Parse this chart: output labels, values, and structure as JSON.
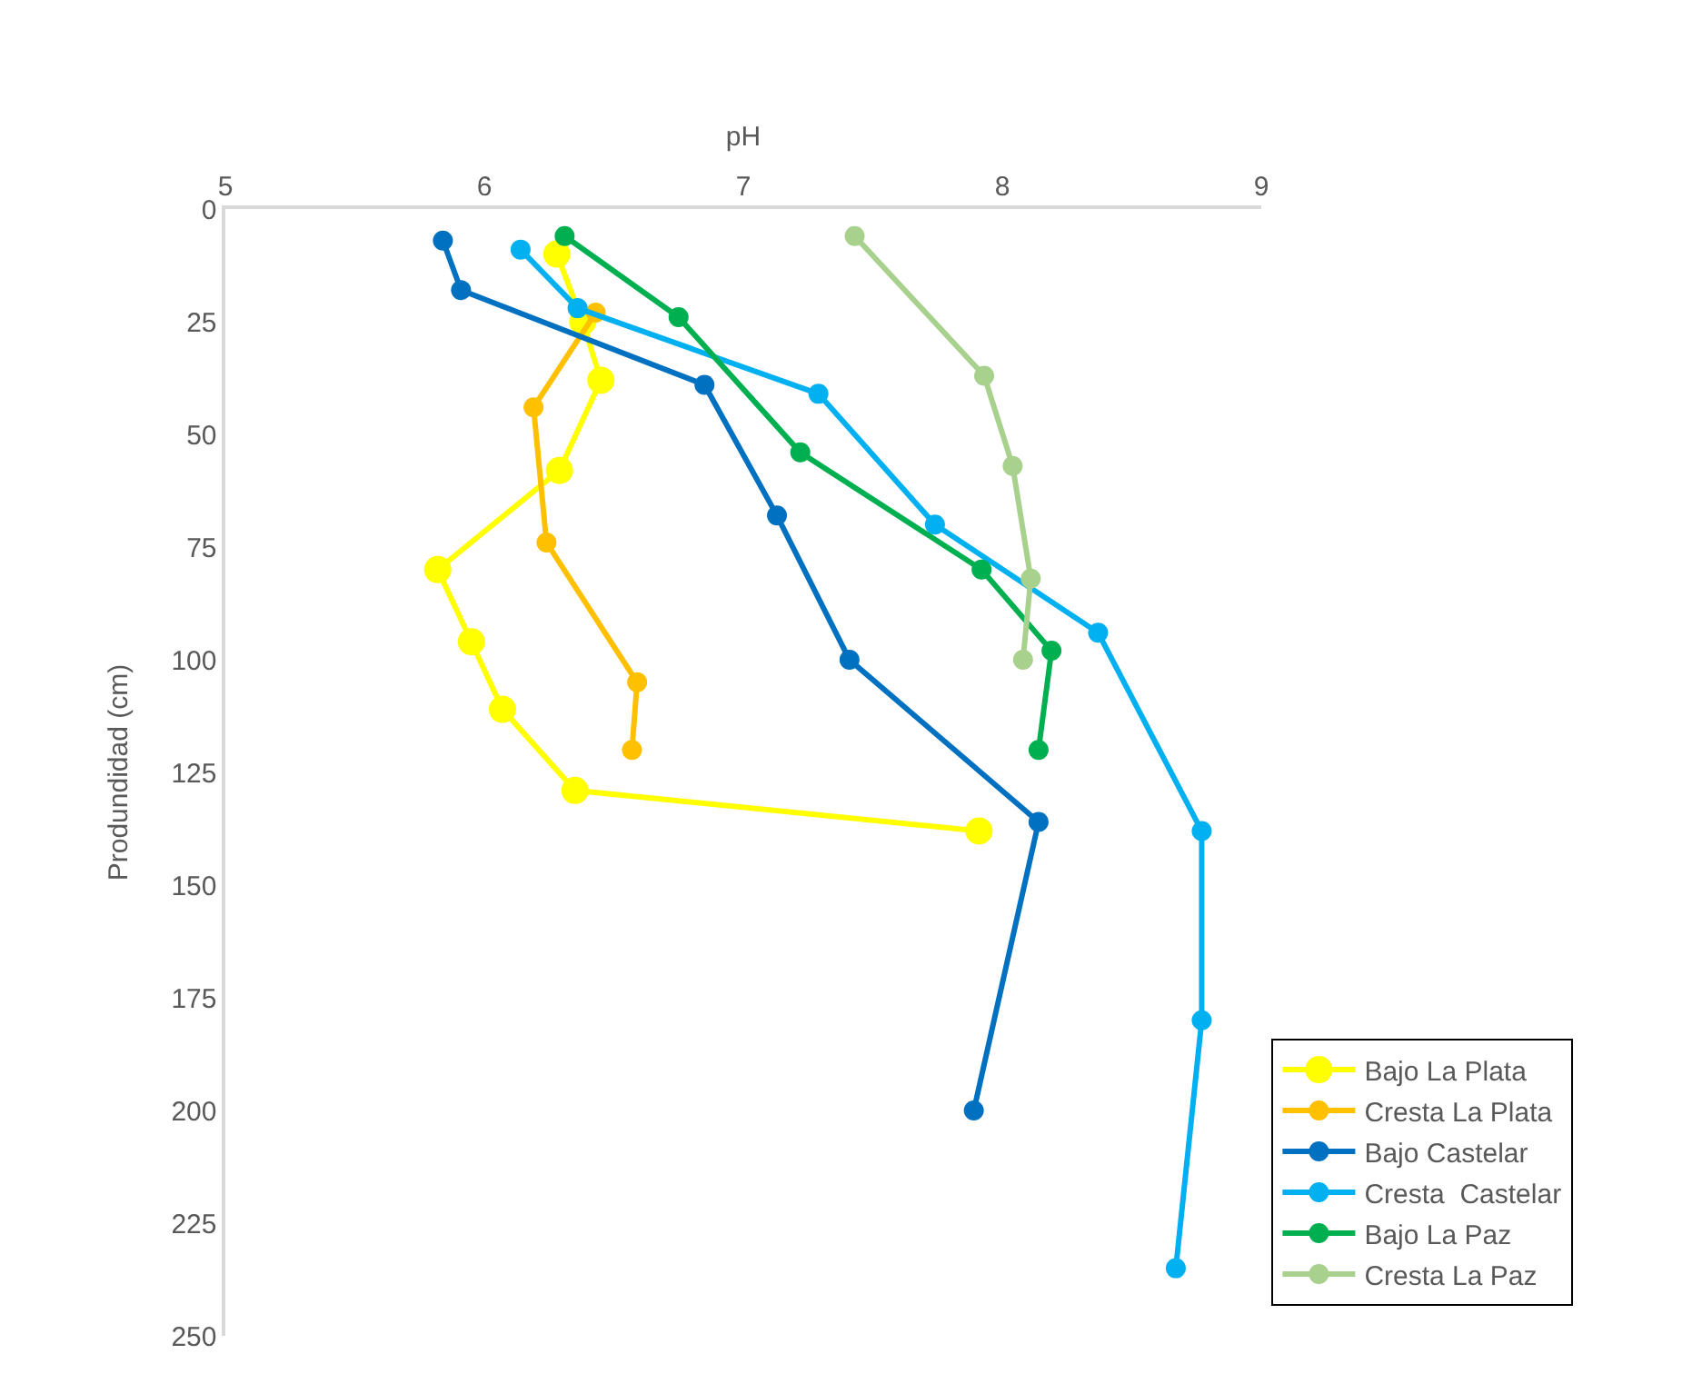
{
  "chart_data": {
    "type": "line",
    "xlabel": "pH",
    "ylabel": "Produndidad (cm)",
    "xlim": [
      5,
      9
    ],
    "xticks": [
      5,
      6,
      7,
      8,
      9
    ],
    "ylim": [
      250,
      0
    ],
    "yticks": [
      0,
      25,
      50,
      75,
      100,
      125,
      150,
      175,
      200,
      225,
      250
    ],
    "grid": false,
    "legend": "right",
    "marker": "circle",
    "line_style": "solid",
    "series": [
      {
        "name": "Bajo La Plata",
        "color": "#ffff00",
        "x": [
          6.28,
          6.38,
          6.45,
          6.29,
          5.82,
          5.95,
          6.07,
          6.35,
          7.91
        ],
        "values": [
          10,
          25,
          38,
          58,
          80,
          96,
          111,
          129,
          138
        ]
      },
      {
        "name": "Cresta La Plata",
        "color": "#ffc000",
        "x": [
          null,
          6.43,
          6.19,
          6.24,
          6.59,
          6.57
        ],
        "values": [
          null,
          23,
          44,
          74,
          105,
          120
        ]
      },
      {
        "name": "Bajo Castelar",
        "color": "#0070c0",
        "x": [
          5.84,
          5.91,
          6.85,
          7.13,
          7.41,
          8.14,
          7.89
        ],
        "values": [
          7,
          18,
          39,
          68,
          100,
          136,
          200
        ]
      },
      {
        "name": "Cresta  Castelar",
        "color": "#00b0f0",
        "x": [
          6.14,
          6.36,
          7.29,
          7.74,
          8.37,
          8.77,
          8.77,
          8.67
        ],
        "values": [
          9,
          22,
          41,
          70,
          94,
          138,
          180,
          235
        ]
      },
      {
        "name": "Bajo La Paz",
        "color": "#00b050",
        "x": [
          6.31,
          6.75,
          7.22,
          7.92,
          8.19,
          8.14
        ],
        "values": [
          6,
          24,
          54,
          80,
          98,
          120
        ]
      },
      {
        "name": "Cresta La Paz",
        "color": "#a9d18e",
        "x": [
          7.43,
          7.93,
          8.04,
          8.11,
          8.08
        ],
        "values": [
          6,
          37,
          57,
          82,
          100
        ]
      }
    ]
  }
}
